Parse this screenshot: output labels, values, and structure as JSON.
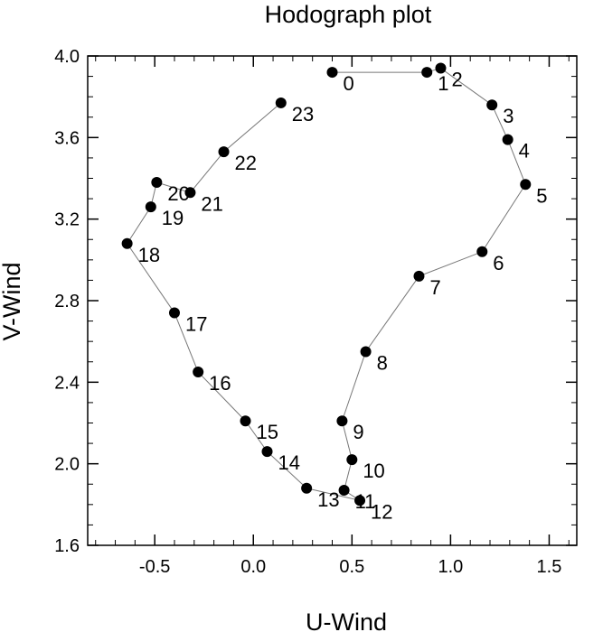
{
  "chart_data": {
    "type": "line",
    "title": "Hodograph plot",
    "xlabel": "U-Wind",
    "ylabel": "V-Wind",
    "xlim": [
      -0.84,
      1.64
    ],
    "ylim": [
      1.6,
      4.0
    ],
    "x_ticks": [
      -0.5,
      0.0,
      0.5,
      1.0,
      1.5
    ],
    "x_tick_labels": [
      "-0.5",
      "0.0",
      "0.5",
      "1.0",
      "1.5"
    ],
    "x_minor_ticks": [
      -0.8,
      -0.7,
      -0.6,
      -0.4,
      -0.3,
      -0.2,
      -0.1,
      0.1,
      0.2,
      0.3,
      0.4,
      0.6,
      0.7,
      0.8,
      0.9,
      1.1,
      1.2,
      1.3,
      1.4,
      1.6
    ],
    "y_ticks": [
      1.6,
      2.0,
      2.4,
      2.8,
      3.2,
      3.6,
      4.0
    ],
    "y_tick_labels": [
      "1.6",
      "2.0",
      "2.4",
      "2.8",
      "3.2",
      "3.6",
      "4.0"
    ],
    "y_minor_ticks": [
      1.7,
      1.8,
      1.9,
      2.1,
      2.2,
      2.3,
      2.5,
      2.6,
      2.7,
      2.9,
      3.0,
      3.1,
      3.3,
      3.4,
      3.5,
      3.7,
      3.8,
      3.9
    ],
    "grid": false,
    "series": [
      {
        "points": [
          {
            "label": "0",
            "u": 0.4,
            "v": 3.92
          },
          {
            "label": "1",
            "u": 0.88,
            "v": 3.92
          },
          {
            "label": "2",
            "u": 0.95,
            "v": 3.94
          },
          {
            "label": "3",
            "u": 1.21,
            "v": 3.76
          },
          {
            "label": "4",
            "u": 1.29,
            "v": 3.59
          },
          {
            "label": "5",
            "u": 1.38,
            "v": 3.37
          },
          {
            "label": "6",
            "u": 1.16,
            "v": 3.04
          },
          {
            "label": "7",
            "u": 0.84,
            "v": 2.92
          },
          {
            "label": "8",
            "u": 0.57,
            "v": 2.55
          },
          {
            "label": "9",
            "u": 0.45,
            "v": 2.21
          },
          {
            "label": "10",
            "u": 0.5,
            "v": 2.02
          },
          {
            "label": "11",
            "u": 0.46,
            "v": 1.87
          },
          {
            "label": "12",
            "u": 0.54,
            "v": 1.82
          },
          {
            "label": "13",
            "u": 0.27,
            "v": 1.88
          },
          {
            "label": "14",
            "u": 0.07,
            "v": 2.06
          },
          {
            "label": "15",
            "u": -0.04,
            "v": 2.21
          },
          {
            "label": "16",
            "u": -0.28,
            "v": 2.45
          },
          {
            "label": "17",
            "u": -0.4,
            "v": 2.74
          },
          {
            "label": "18",
            "u": -0.64,
            "v": 3.08
          },
          {
            "label": "19",
            "u": -0.52,
            "v": 3.26
          },
          {
            "label": "20",
            "u": -0.49,
            "v": 3.38
          },
          {
            "label": "21",
            "u": -0.32,
            "v": 3.33
          },
          {
            "label": "22",
            "u": -0.15,
            "v": 3.53
          },
          {
            "label": "23",
            "u": 0.14,
            "v": 3.77
          }
        ]
      }
    ],
    "colors": {
      "marker": "#000000",
      "line": "#777777",
      "axis": "#000000",
      "background": "#ffffff"
    }
  }
}
